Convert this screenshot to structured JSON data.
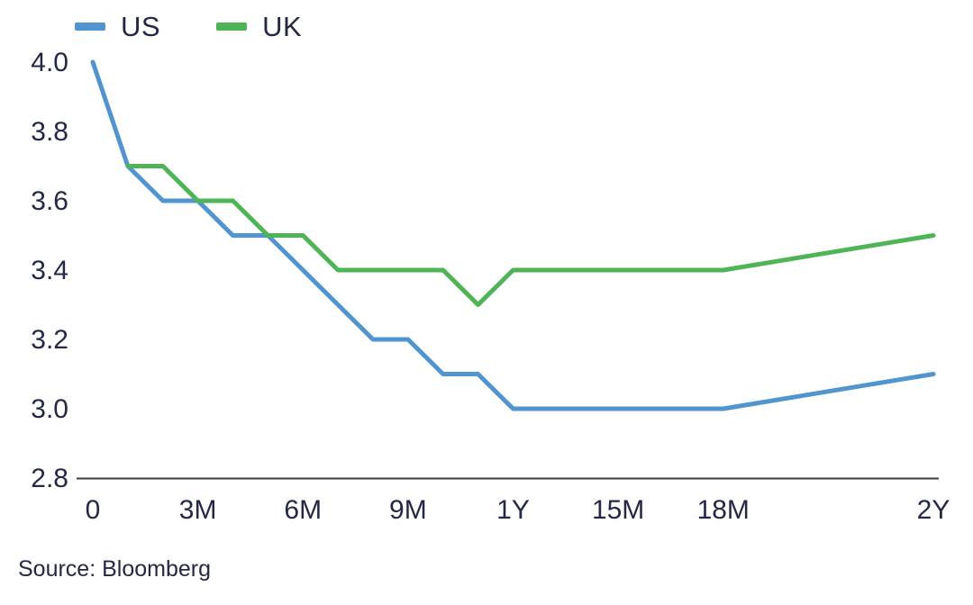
{
  "page": {
    "background": "#ffffff",
    "text_color": "#232846",
    "source_note": "Source: Bloomberg"
  },
  "chart_data": {
    "type": "line",
    "title": "",
    "xlabel": "",
    "ylabel": "",
    "x_unit": "months",
    "xlim": [
      0,
      24
    ],
    "ylim": [
      2.8,
      4.0
    ],
    "grid": false,
    "legend_position": "top-left",
    "axis_line_color": "#3d3d3d",
    "x_ticks": [
      {
        "value": 0,
        "label": "0"
      },
      {
        "value": 3,
        "label": "3M"
      },
      {
        "value": 6,
        "label": "6M"
      },
      {
        "value": 9,
        "label": "9M"
      },
      {
        "value": 12,
        "label": "1Y"
      },
      {
        "value": 15,
        "label": "15M"
      },
      {
        "value": 18,
        "label": "18M"
      },
      {
        "value": 24,
        "label": "2Y"
      }
    ],
    "y_ticks": [
      {
        "value": 4.0,
        "label": "4.0"
      },
      {
        "value": 3.8,
        "label": "3.8"
      },
      {
        "value": 3.6,
        "label": "3.6"
      },
      {
        "value": 3.4,
        "label": "3.4"
      },
      {
        "value": 3.2,
        "label": "3.2"
      },
      {
        "value": 3.0,
        "label": "3.0"
      },
      {
        "value": 2.8,
        "label": "2.8"
      }
    ],
    "series": [
      {
        "name": "US",
        "color": "#5094d0",
        "points": [
          [
            0,
            4.0
          ],
          [
            1,
            3.7
          ],
          [
            2,
            3.6
          ],
          [
            3,
            3.6
          ],
          [
            4,
            3.5
          ],
          [
            5,
            3.5
          ],
          [
            6,
            3.4
          ],
          [
            7,
            3.3
          ],
          [
            8,
            3.2
          ],
          [
            9,
            3.2
          ],
          [
            10,
            3.1
          ],
          [
            11,
            3.1
          ],
          [
            12,
            3.0
          ],
          [
            13,
            3.0
          ],
          [
            14,
            3.0
          ],
          [
            15,
            3.0
          ],
          [
            16,
            3.0
          ],
          [
            17,
            3.0
          ],
          [
            18,
            3.0
          ],
          [
            24,
            3.1
          ]
        ]
      },
      {
        "name": "UK",
        "color": "#4eb456",
        "points": [
          [
            1,
            3.7
          ],
          [
            2,
            3.7
          ],
          [
            3,
            3.6
          ],
          [
            4,
            3.6
          ],
          [
            5,
            3.5
          ],
          [
            6,
            3.5
          ],
          [
            7,
            3.4
          ],
          [
            8,
            3.4
          ],
          [
            9,
            3.4
          ],
          [
            10,
            3.4
          ],
          [
            11,
            3.3
          ],
          [
            12,
            3.4
          ],
          [
            13,
            3.4
          ],
          [
            14,
            3.4
          ],
          [
            15,
            3.4
          ],
          [
            16,
            3.4
          ],
          [
            17,
            3.4
          ],
          [
            18,
            3.4
          ],
          [
            24,
            3.5
          ]
        ]
      }
    ]
  }
}
